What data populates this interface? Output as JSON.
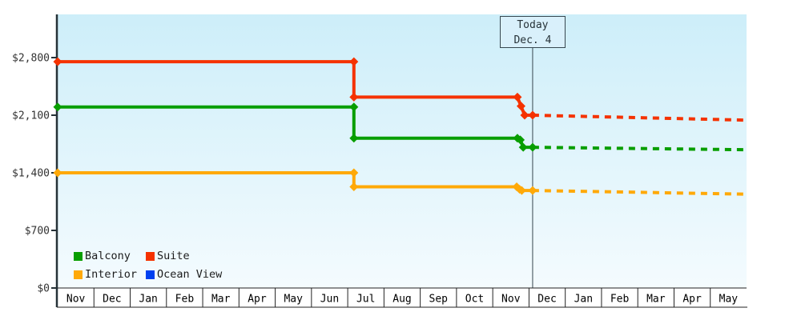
{
  "window": {
    "border_color": "#ecaa5e",
    "background": "#ffffff"
  },
  "chart_data": {
    "type": "line",
    "title": "",
    "description": "Cruise cabin price history by category with dotted price projection after today",
    "units": "USD",
    "plot": {
      "gradient_top": "#cdeef9",
      "gradient_bottom": "#f4fbfe",
      "grid": false,
      "legend_position": "bottom-left-inside"
    },
    "y_axis": {
      "ylim": [
        0,
        3325
      ],
      "ticks": [
        {
          "label": "$0",
          "value": 0
        },
        {
          "label": "$700",
          "value": 700
        },
        {
          "label": "$1,400",
          "value": 1400
        },
        {
          "label": "$2,100",
          "value": 2100
        },
        {
          "label": "$2,800",
          "value": 2800
        }
      ]
    },
    "x_axis": {
      "months": [
        "Nov",
        "Dec",
        "Jan",
        "Feb",
        "Mar",
        "Apr",
        "May",
        "Jun",
        "Jul",
        "Aug",
        "Sep",
        "Oct",
        "Nov",
        "Dec",
        "Jan",
        "Feb",
        "Mar",
        "Apr",
        "May"
      ]
    },
    "today": {
      "line1": "Today",
      "line2": "Dec. 4",
      "month_offset": 13.1
    },
    "legend": [
      {
        "name": "Balcony",
        "color": "#089e00"
      },
      {
        "name": "Suite",
        "color": "#f53200"
      },
      {
        "name": "Interior",
        "color": "#ffa908"
      },
      {
        "name": "Ocean View",
        "color": "#0040f0"
      }
    ],
    "series": [
      {
        "name": "Suite",
        "color": "#f53200",
        "solid": [
          [
            0,
            2750
          ],
          [
            8.17,
            2750
          ],
          [
            8.17,
            2320
          ],
          [
            12.68,
            2320
          ],
          [
            12.78,
            2210
          ],
          [
            12.88,
            2100
          ],
          [
            13.1,
            2100
          ]
        ],
        "dotted": [
          [
            13.1,
            2100
          ],
          [
            19,
            2040
          ]
        ],
        "markers": [
          [
            0,
            2750
          ],
          [
            8.17,
            2750
          ],
          [
            8.17,
            2320
          ],
          [
            12.68,
            2320
          ],
          [
            12.78,
            2210
          ],
          [
            12.88,
            2100
          ],
          [
            13.1,
            2100
          ]
        ]
      },
      {
        "name": "Balcony",
        "color": "#089e00",
        "solid": [
          [
            0,
            2200
          ],
          [
            8.17,
            2200
          ],
          [
            8.17,
            1820
          ],
          [
            12.68,
            1820
          ],
          [
            12.76,
            1800
          ],
          [
            12.84,
            1710
          ],
          [
            13.1,
            1710
          ]
        ],
        "dotted": [
          [
            13.1,
            1710
          ],
          [
            19,
            1680
          ]
        ],
        "markers": [
          [
            0,
            2200
          ],
          [
            8.17,
            2200
          ],
          [
            8.17,
            1820
          ],
          [
            12.68,
            1820
          ],
          [
            12.76,
            1800
          ],
          [
            12.84,
            1710
          ],
          [
            13.1,
            1710
          ]
        ]
      },
      {
        "name": "Interior",
        "color": "#ffa908",
        "solid": [
          [
            0,
            1400
          ],
          [
            8.17,
            1400
          ],
          [
            8.17,
            1230
          ],
          [
            12.66,
            1230
          ],
          [
            12.74,
            1200
          ],
          [
            12.8,
            1185
          ],
          [
            13.1,
            1185
          ]
        ],
        "dotted": [
          [
            13.1,
            1185
          ],
          [
            19,
            1140
          ]
        ],
        "markers": [
          [
            0,
            1400
          ],
          [
            8.17,
            1400
          ],
          [
            8.17,
            1230
          ],
          [
            12.66,
            1230
          ],
          [
            12.74,
            1200
          ],
          [
            12.8,
            1185
          ],
          [
            13.1,
            1185
          ]
        ]
      },
      {
        "name": "Ocean View",
        "color": "#0040f0",
        "solid": [],
        "dotted": [],
        "markers": []
      }
    ]
  }
}
